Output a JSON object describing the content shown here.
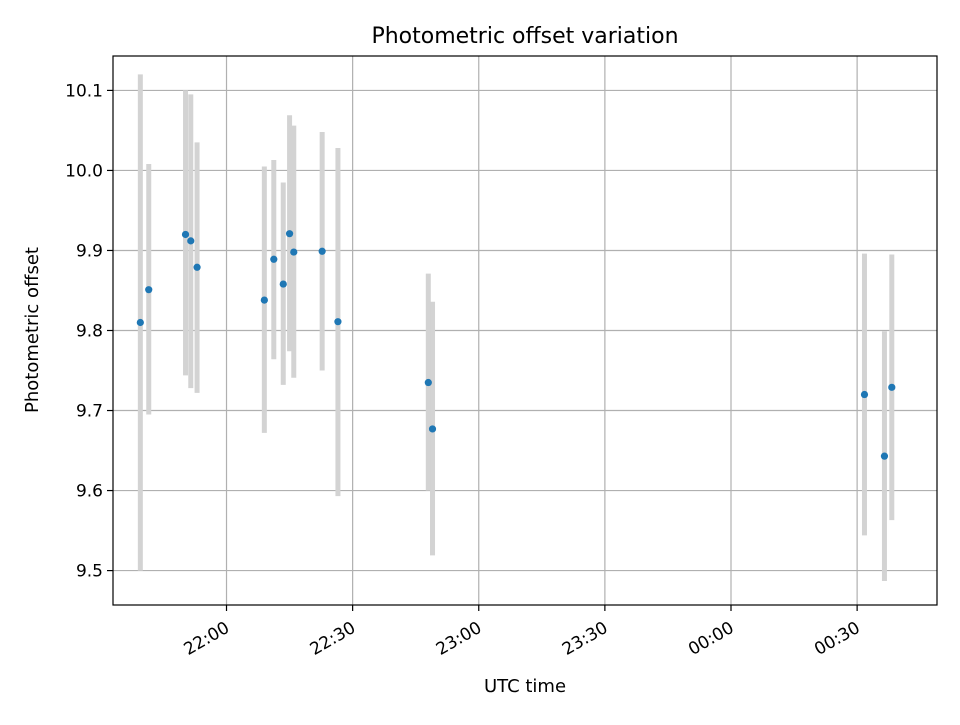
{
  "chart_data": {
    "type": "scatter",
    "title": "Photometric offset variation",
    "xlabel": "UTC time",
    "ylabel": "Photometric offset",
    "x_axis": {
      "kind": "time",
      "start": "21:33",
      "end": "00:49",
      "ticks": [
        "22:00",
        "22:30",
        "23:00",
        "23:30",
        "00:00",
        "00:30"
      ]
    },
    "ylim": [
      9.457,
      10.143
    ],
    "y_ticks": [
      9.5,
      9.6,
      9.7,
      9.8,
      9.9,
      10.0,
      10.1
    ],
    "grid": true,
    "colors": {
      "points": "#1f77b4",
      "error_bars": "#d3d3d3",
      "grid": "#b0b0b0"
    },
    "series": [
      {
        "points": [
          {
            "t": "21:39:30",
            "y": 9.81,
            "ylow": 9.5,
            "yhigh": 10.12
          },
          {
            "t": "21:41:30",
            "y": 9.851,
            "ylow": 9.695,
            "yhigh": 10.008
          },
          {
            "t": "21:50:15",
            "y": 9.92,
            "ylow": 9.744,
            "yhigh": 10.1
          },
          {
            "t": "21:51:30",
            "y": 9.912,
            "ylow": 9.728,
            "yhigh": 10.095
          },
          {
            "t": "21:53:00",
            "y": 9.879,
            "ylow": 9.722,
            "yhigh": 10.035
          },
          {
            "t": "22:09:00",
            "y": 9.838,
            "ylow": 9.672,
            "yhigh": 10.005
          },
          {
            "t": "22:11:15",
            "y": 9.889,
            "ylow": 9.764,
            "yhigh": 10.013
          },
          {
            "t": "22:13:30",
            "y": 9.858,
            "ylow": 9.732,
            "yhigh": 9.985
          },
          {
            "t": "22:15:00",
            "y": 9.921,
            "ylow": 9.774,
            "yhigh": 10.069
          },
          {
            "t": "22:16:00",
            "y": 9.898,
            "ylow": 9.741,
            "yhigh": 10.056
          },
          {
            "t": "22:22:45",
            "y": 9.899,
            "ylow": 9.75,
            "yhigh": 10.048
          },
          {
            "t": "22:26:30",
            "y": 9.811,
            "ylow": 9.593,
            "yhigh": 10.028
          },
          {
            "t": "22:48:00",
            "y": 9.735,
            "ylow": 9.6,
            "yhigh": 9.871
          },
          {
            "t": "22:49:00",
            "y": 9.677,
            "ylow": 9.519,
            "yhigh": 9.836
          },
          {
            "t": "00:31:45",
            "y": 9.72,
            "ylow": 9.544,
            "yhigh": 9.896
          },
          {
            "t": "00:36:30",
            "y": 9.643,
            "ylow": 9.487,
            "yhigh": 9.799
          },
          {
            "t": "00:38:15",
            "y": 9.729,
            "ylow": 9.563,
            "yhigh": 9.895
          }
        ]
      }
    ]
  }
}
